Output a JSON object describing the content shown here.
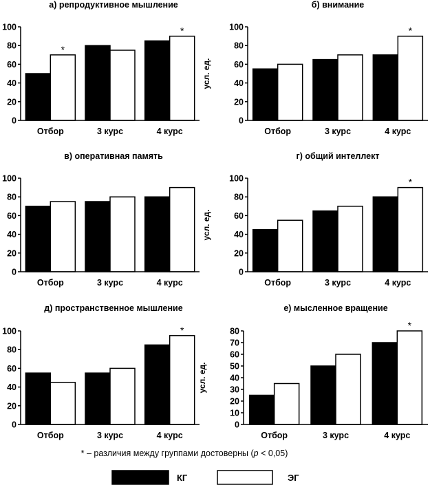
{
  "colors": {
    "kg": "#000000",
    "eg": "#ffffff",
    "stroke": "#000000"
  },
  "legend": {
    "kg": "КГ",
    "eg": "ЭГ"
  },
  "footnote": {
    "star": "*",
    "prefix": " – различия между группами достоверны (",
    "p": "p",
    "suffix": " < 0,05)"
  },
  "chart_data": [
    {
      "type": "bar",
      "title": "а) репродуктивное мышление",
      "ylabel": "",
      "categories": [
        "Отбор",
        "3 курс",
        "4 курс"
      ],
      "series": [
        {
          "name": "КГ",
          "values": [
            50,
            80,
            85
          ]
        },
        {
          "name": "ЭГ",
          "values": [
            70,
            75,
            90
          ]
        }
      ],
      "ylim": [
        0,
        100
      ],
      "yticks": [
        0,
        20,
        40,
        60,
        80,
        100
      ],
      "significant": [
        true,
        false,
        true
      ]
    },
    {
      "type": "bar",
      "title": "б) внимание",
      "ylabel": "усл. ед.",
      "categories": [
        "Отбор",
        "3 курс",
        "4 курс"
      ],
      "series": [
        {
          "name": "КГ",
          "values": [
            55,
            65,
            70
          ]
        },
        {
          "name": "ЭГ",
          "values": [
            60,
            70,
            90
          ]
        }
      ],
      "ylim": [
        0,
        100
      ],
      "yticks": [
        0,
        20,
        40,
        60,
        80,
        100
      ],
      "significant": [
        false,
        false,
        true
      ]
    },
    {
      "type": "bar",
      "title": "в) оперативная память",
      "ylabel": "",
      "categories": [
        "Отбор",
        "3 курс",
        "4 курс"
      ],
      "series": [
        {
          "name": "КГ",
          "values": [
            70,
            75,
            80
          ]
        },
        {
          "name": "ЭГ",
          "values": [
            75,
            80,
            90
          ]
        }
      ],
      "ylim": [
        0,
        100
      ],
      "yticks": [
        0,
        20,
        40,
        60,
        80,
        100
      ],
      "significant": [
        false,
        false,
        false
      ]
    },
    {
      "type": "bar",
      "title": "г) общий интеллект",
      "ylabel": "усл. ед.",
      "categories": [
        "Отбор",
        "3 курс",
        "4 курс"
      ],
      "series": [
        {
          "name": "КГ",
          "values": [
            45,
            65,
            80
          ]
        },
        {
          "name": "ЭГ",
          "values": [
            55,
            70,
            90
          ]
        }
      ],
      "ylim": [
        0,
        100
      ],
      "yticks": [
        0,
        20,
        40,
        60,
        80,
        100
      ],
      "significant": [
        false,
        false,
        true
      ]
    },
    {
      "type": "bar",
      "title": "д) пространственное мышление",
      "ylabel": "",
      "categories": [
        "Отбор",
        "3 курс",
        "4 курс"
      ],
      "series": [
        {
          "name": "КГ",
          "values": [
            55,
            55,
            85
          ]
        },
        {
          "name": "ЭГ",
          "values": [
            45,
            60,
            95
          ]
        }
      ],
      "ylim": [
        0,
        100
      ],
      "yticks": [
        0,
        20,
        40,
        60,
        80,
        100
      ],
      "significant": [
        false,
        false,
        true
      ]
    },
    {
      "type": "bar",
      "title": "е) мысленное вращение",
      "ylabel": "усл. ед.",
      "categories": [
        "Отбор",
        "3 курс",
        "4 курс"
      ],
      "series": [
        {
          "name": "КГ",
          "values": [
            25,
            50,
            70
          ]
        },
        {
          "name": "ЭГ",
          "values": [
            35,
            60,
            80
          ]
        }
      ],
      "ylim": [
        0,
        80
      ],
      "yticks": [
        0,
        10,
        20,
        30,
        40,
        50,
        60,
        70,
        80
      ],
      "significant": [
        false,
        false,
        true
      ]
    }
  ]
}
